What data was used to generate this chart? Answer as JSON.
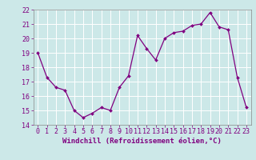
{
  "x": [
    0,
    1,
    2,
    3,
    4,
    5,
    6,
    7,
    8,
    9,
    10,
    11,
    12,
    13,
    14,
    15,
    16,
    17,
    18,
    19,
    20,
    21,
    22,
    23
  ],
  "y": [
    19.0,
    17.3,
    16.6,
    16.4,
    15.0,
    14.5,
    14.8,
    15.2,
    15.0,
    16.6,
    17.4,
    20.2,
    19.3,
    18.5,
    20.0,
    20.4,
    20.5,
    20.9,
    21.0,
    21.8,
    20.8,
    20.6,
    17.3,
    15.2
  ],
  "line_color": "#800080",
  "marker": "D",
  "marker_size": 2.0,
  "linewidth": 0.9,
  "xlabel": "Windchill (Refroidissement éolien,°C)",
  "xlabel_fontsize": 6.5,
  "xlim": [
    -0.5,
    23.5
  ],
  "ylim": [
    14,
    22
  ],
  "yticks": [
    14,
    15,
    16,
    17,
    18,
    19,
    20,
    21,
    22
  ],
  "xticks": [
    0,
    1,
    2,
    3,
    4,
    5,
    6,
    7,
    8,
    9,
    10,
    11,
    12,
    13,
    14,
    15,
    16,
    17,
    18,
    19,
    20,
    21,
    22,
    23
  ],
  "xtick_labels": [
    "0",
    "1",
    "2",
    "3",
    "4",
    "5",
    "6",
    "7",
    "8",
    "9",
    "10",
    "11",
    "12",
    "13",
    "14",
    "15",
    "16",
    "17",
    "18",
    "19",
    "20",
    "21",
    "22",
    "23"
  ],
  "background_color": "#cce8e8",
  "grid_color": "#ffffff",
  "tick_fontsize": 6.0
}
